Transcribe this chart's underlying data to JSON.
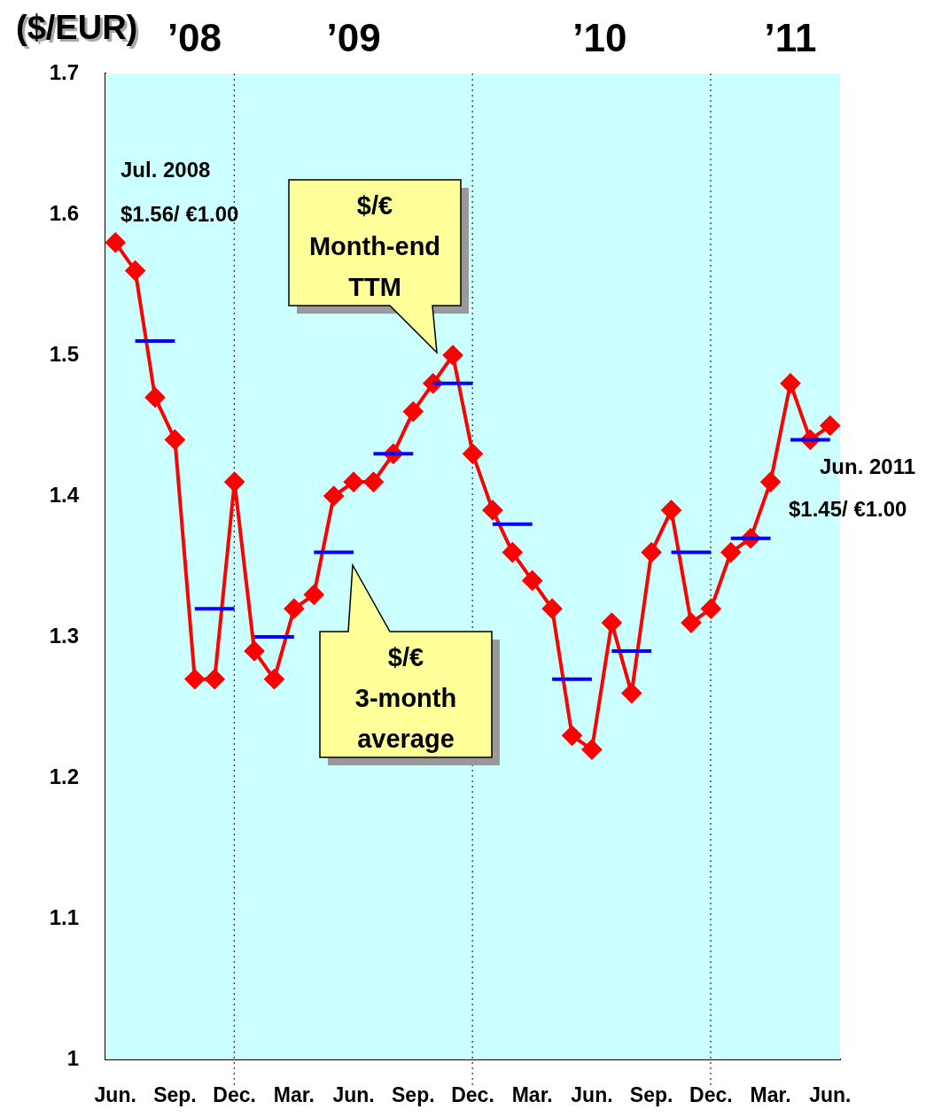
{
  "chart_data": {
    "type": "line",
    "ylabel": "($/EUR)",
    "categories": [
      "Jun.",
      null,
      null,
      "Sep.",
      null,
      null,
      "Dec.",
      null,
      null,
      "Mar.",
      null,
      null,
      "Jun.",
      null,
      null,
      "Sep.",
      null,
      null,
      "Dec.",
      null,
      null,
      "Mar.",
      null,
      null,
      "Jun.",
      null,
      null,
      "Sep.",
      null,
      null,
      "Dec.",
      null,
      null,
      "Mar.",
      null,
      null,
      "Jun."
    ],
    "series": [
      {
        "color": "#ff0000",
        "marker": "diamond",
        "values": [
          1.58,
          1.56,
          1.47,
          1.44,
          1.27,
          1.27,
          1.41,
          1.29,
          1.27,
          1.32,
          1.33,
          1.4,
          1.41,
          1.41,
          1.43,
          1.46,
          1.48,
          1.5,
          1.43,
          1.39,
          1.36,
          1.34,
          1.32,
          1.23,
          1.22,
          1.31,
          1.26,
          1.36,
          1.39,
          1.31,
          1.32,
          1.36,
          1.37,
          1.41,
          1.48,
          1.44,
          1.45
        ]
      },
      {
        "color": "#0000ff",
        "marker": "none",
        "values": [
          null,
          1.51,
          1.51,
          1.51,
          null,
          null,
          null,
          1.3,
          1.3,
          1.3,
          null,
          null,
          null,
          1.43,
          1.43,
          1.43,
          null,
          null,
          null,
          1.38,
          1.38,
          1.38,
          null,
          null,
          null,
          1.29,
          1.29,
          1.29,
          null,
          null,
          null,
          1.37,
          1.37,
          1.37,
          null,
          null,
          null
        ]
      },
      {
        "color": "#0000ff",
        "marker": "none",
        "values": [
          null,
          null,
          null,
          null,
          1.32,
          1.32,
          1.32,
          null,
          null,
          null,
          1.36,
          1.36,
          1.36,
          null,
          null,
          null,
          1.48,
          1.48,
          1.48,
          null,
          null,
          null,
          1.27,
          1.27,
          1.27,
          null,
          null,
          null,
          1.36,
          1.36,
          1.36,
          null,
          null,
          null,
          1.44,
          1.44,
          1.44
        ]
      }
    ],
    "ylim": [
      1,
      1.7
    ],
    "yticks": [
      1,
      1.1,
      1.2,
      1.3,
      1.4,
      1.5,
      1.6,
      1.7
    ],
    "x2lim": [
      "2008-05-31",
      "2011-06-30"
    ],
    "x2ticks": [
      {
        "value": "2008-10-15",
        "label": "’08"
      },
      {
        "value": "2009-06-15",
        "label": "’09"
      },
      {
        "value": "2010-06-27",
        "label": "’10"
      },
      {
        "value": "2011-04-15",
        "label": "’11"
      }
    ],
    "ref_lines": [
      {
        "axis": "x2",
        "value": "2008-12-15",
        "line_style": "dotted",
        "color": "#000000"
      },
      {
        "axis": "x2",
        "value": "2009-12-15",
        "line_style": "dotted",
        "color": "#000000"
      },
      {
        "axis": "x2",
        "value": "2010-12-15",
        "line_style": "dotted",
        "color": "#000000"
      }
    ],
    "bands": [
      {
        "axis": "x2",
        "from": "2008-05-31",
        "to": "2011-06-30",
        "color": "#ccffff"
      }
    ],
    "annotations": [
      "Jul. 2008",
      "$1.56/ €1.00",
      "Jun. 2011",
      "$1.45/ €1.00",
      "$/€\nMonth-end\nTTM",
      "$/€\n3-month\naverage"
    ]
  }
}
